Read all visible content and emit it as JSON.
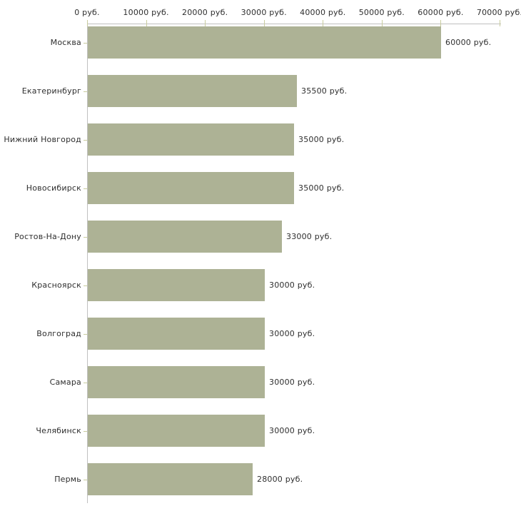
{
  "chart_data": {
    "type": "bar",
    "orientation": "horizontal",
    "title": "",
    "xlabel": "",
    "ylabel": "",
    "xlim": [
      0,
      70000
    ],
    "grid": false,
    "legend": false,
    "unit_suffix": " руб.",
    "categories": [
      "Москва",
      "Екатеринбург",
      "Нижний Новгород",
      "Новосибирск",
      "Ростов-На-Дону",
      "Красноярск",
      "Волгоград",
      "Самара",
      "Челябинск",
      "Пермь"
    ],
    "values": [
      60000,
      35500,
      35000,
      35000,
      33000,
      30000,
      30000,
      30000,
      30000,
      28000
    ],
    "value_labels": [
      "60000 руб.",
      "35500 руб.",
      "35000 руб.",
      "35000 руб.",
      "33000 руб.",
      "30000 руб.",
      "30000 руб.",
      "30000 руб.",
      "30000 руб.",
      "28000 руб."
    ],
    "x_tick_values": [
      0,
      10000,
      20000,
      30000,
      40000,
      50000,
      60000,
      70000
    ],
    "x_tick_labels": [
      "0 руб.",
      "10000 руб.",
      "20000 руб.",
      "30000 руб.",
      "40000 руб.",
      "50000 руб.",
      "60000 руб.",
      "70000 руб."
    ],
    "colors": {
      "bar_fill": "#adb295",
      "axis_line": "#c0c0c0",
      "tick_mark": "#c9cc9e",
      "text": "#2e2e2e",
      "background": "#ffffff"
    }
  }
}
